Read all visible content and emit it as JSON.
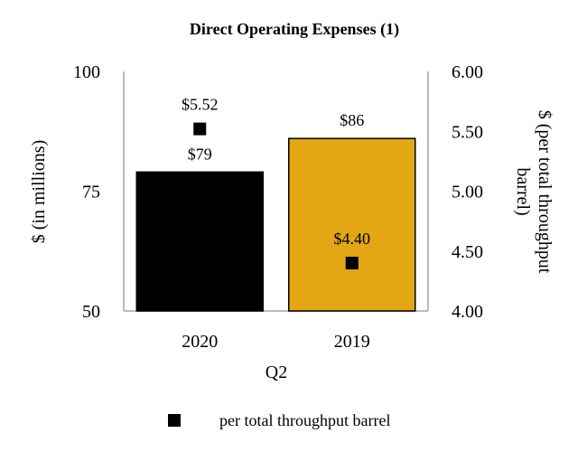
{
  "chart_data": {
    "type": "bar",
    "title": "Direct Operating Expenses (1)",
    "xlabel": "Q2",
    "ylabel": "$ (in millions)",
    "y2label_lines": [
      "$ (per total throughput",
      "barrel)"
    ],
    "categories": [
      "2020",
      "2019"
    ],
    "series": [
      {
        "type": "bar",
        "values": [
          79,
          86
        ],
        "labels": [
          "$79",
          "$86"
        ],
        "colors": [
          "#000000",
          "#E3A614"
        ],
        "axis": "left"
      },
      {
        "name": "per total throughput barrel",
        "type": "scatter",
        "marker": "square",
        "values": [
          5.52,
          4.4
        ],
        "labels": [
          "$5.52",
          "$4.40"
        ],
        "color": "#000000",
        "axis": "right"
      }
    ],
    "ylim": [
      50,
      100
    ],
    "yticks": [
      "50",
      "75",
      "100"
    ],
    "y2lim": [
      4.0,
      6.0
    ],
    "y2ticks": [
      "4.00",
      "4.50",
      "5.00",
      "5.50",
      "6.00"
    ],
    "grid": false,
    "legend": "bottom-center"
  }
}
